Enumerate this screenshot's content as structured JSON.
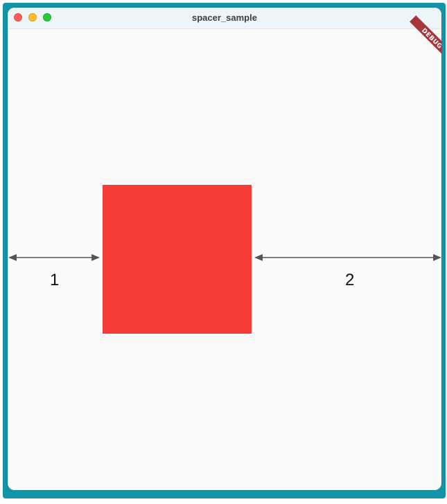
{
  "window": {
    "title": "spacer_sample"
  },
  "debug_banner": {
    "label": "DEBUG",
    "color": "#a6343b"
  },
  "content": {
    "box_color": "#f63c36",
    "spacer_labels": {
      "left": "1",
      "right": "2"
    }
  }
}
